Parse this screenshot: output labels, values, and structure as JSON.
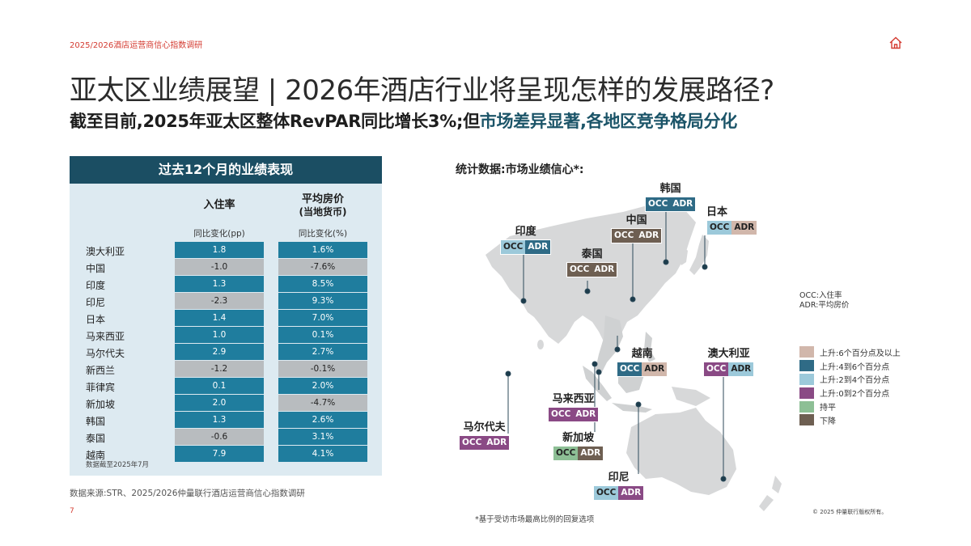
{
  "header": {
    "top_label": "2025/2026酒店运营商信心指数调研",
    "title": "亚太区业绩展望 | 2026年酒店行业将呈现怎样的发展路径?",
    "subtitle_part1": "截至目前,2025年亚太区整体RevPAR同比增长3%;但",
    "subtitle_part2": "市场差异显著,各地区竞争格局分化"
  },
  "table": {
    "title": "过去12个月的业绩表现",
    "col1_title": "入住率",
    "col1_sub": "同比变化(pp)",
    "col2_title": "平均房价",
    "col2_title_line2": "(当地货币)",
    "col2_sub": "同比变化(%)",
    "rows": [
      {
        "name": "澳大利亚",
        "occ": "1.8",
        "adr": "1.6%"
      },
      {
        "name": "中国",
        "occ": "-1.0",
        "adr": "-7.6%"
      },
      {
        "name": "印度",
        "occ": "1.3",
        "adr": "8.5%"
      },
      {
        "name": "印尼",
        "occ": "-2.3",
        "adr": "9.3%"
      },
      {
        "name": "日本",
        "occ": "1.4",
        "adr": "7.0%"
      },
      {
        "name": "马来西亚",
        "occ": "1.0",
        "adr": "0.1%"
      },
      {
        "name": "马尔代夫",
        "occ": "2.9",
        "adr": "2.7%"
      },
      {
        "name": "新西兰",
        "occ": "-1.2",
        "adr": "-0.1%"
      },
      {
        "name": "菲律宾",
        "occ": "0.1",
        "adr": "2.0%"
      },
      {
        "name": "新加坡",
        "occ": "2.0",
        "adr": "-4.7%"
      },
      {
        "name": "韩国",
        "occ": "1.3",
        "adr": "2.6%"
      },
      {
        "name": "泰国",
        "occ": "-0.6",
        "adr": "3.1%"
      },
      {
        "name": "越南",
        "occ": "7.9",
        "adr": "4.1%"
      }
    ],
    "note": "数据截至2025年7月"
  },
  "footer": {
    "source": "数据来源:STR、2025/2026仲量联行酒店运营商信心指数调研",
    "page_number": "7",
    "footnote": "*基于受访市场最高比例的回复选项",
    "copyright": "© 2025 仲量联行版权所有。"
  },
  "map": {
    "title": "统计数据:市场业绩信心*:",
    "badge_occ": "OCC",
    "badge_adr": "ADR",
    "markets": [
      {
        "name": "韩国",
        "occ_color": "#2f6b86",
        "adr_color": "#2f6b86"
      },
      {
        "name": "日本",
        "occ_color": "#9cc9da",
        "adr_color": "#d1b7ab"
      },
      {
        "name": "中国",
        "occ_color": "#6e5f52",
        "adr_color": "#6e5f52"
      },
      {
        "name": "印度",
        "occ_color": "#9cc9da",
        "adr_color": "#2f6b86"
      },
      {
        "name": "泰国",
        "occ_color": "#6e5f52",
        "adr_color": "#6e5f52"
      },
      {
        "name": "越南",
        "occ_color": "#2f6b86",
        "adr_color": "#d1b7ab"
      },
      {
        "name": "澳大利亚",
        "occ_color": "#8a4a85",
        "adr_color": "#9cc9da"
      },
      {
        "name": "马来西亚",
        "occ_color": "#8a4a85",
        "adr_color": "#8a4a85"
      },
      {
        "name": "马尔代夫",
        "occ_color": "#8a4a85",
        "adr_color": "#8a4a85"
      },
      {
        "name": "新加坡",
        "occ_color": "#8dbf95",
        "adr_color": "#6e5f52"
      },
      {
        "name": "印尼",
        "occ_color": "#9cc9da",
        "adr_color": "#8a4a85"
      }
    ]
  },
  "legend": {
    "abbr_occ": "OCC:入住率",
    "abbr_adr": "ADR:平均房价",
    "items": [
      {
        "label": "上升:6个百分点及以上",
        "color": "#d1b7ab"
      },
      {
        "label": "上升:4到6个百分点",
        "color": "#2f6b86"
      },
      {
        "label": "上升:2到4个百分点",
        "color": "#9cc9da"
      },
      {
        "label": "上升:0到2个百分点",
        "color": "#8a4a85"
      },
      {
        "label": "持平",
        "color": "#8dbf95"
      },
      {
        "label": "下降",
        "color": "#6e5f52"
      }
    ]
  }
}
